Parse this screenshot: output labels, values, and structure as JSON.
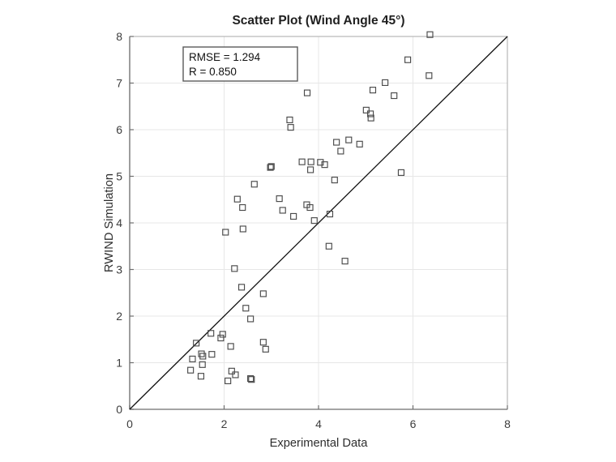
{
  "chart_data": {
    "type": "scatter",
    "title": "Scatter Plot (Wind Angle 45°)",
    "xlabel": "Experimental Data",
    "ylabel": "RWIND Simulation",
    "xlim": [
      0,
      8
    ],
    "ylim": [
      0,
      8
    ],
    "xticks": [
      0,
      2,
      4,
      6,
      8
    ],
    "yticks": [
      0,
      1,
      2,
      3,
      4,
      5,
      6,
      7,
      8
    ],
    "grid": true,
    "legend": "none",
    "marker_style": "open-square",
    "identity_line": {
      "from": [
        0,
        0
      ],
      "to": [
        8,
        8
      ]
    },
    "annotation": {
      "lines": [
        "RMSE = 1.294",
        "R = 0.850"
      ],
      "rmse": 1.294,
      "r": 0.85
    },
    "colors": {
      "marker_stroke": "#4a4a4a",
      "identity_line": "#111111",
      "grid": "#e7e7e7",
      "axis_box": "#a9a9a9",
      "axis_main": "#858585",
      "tick": "#6e6e6e",
      "annotation_border": "#5a5a5a",
      "background": "#ffffff"
    },
    "points": [
      [
        6.36,
        8.04
      ],
      [
        5.89,
        7.5
      ],
      [
        6.34,
        7.16
      ],
      [
        5.41,
        7.01
      ],
      [
        5.15,
        6.85
      ],
      [
        3.76,
        6.79
      ],
      [
        5.6,
        6.73
      ],
      [
        5.01,
        6.42
      ],
      [
        5.1,
        6.34
      ],
      [
        5.11,
        6.25
      ],
      [
        3.39,
        6.21
      ],
      [
        3.41,
        6.05
      ],
      [
        4.64,
        5.78
      ],
      [
        4.38,
        5.73
      ],
      [
        4.87,
        5.69
      ],
      [
        4.47,
        5.54
      ],
      [
        3.65,
        5.31
      ],
      [
        3.84,
        5.31
      ],
      [
        4.04,
        5.3
      ],
      [
        4.13,
        5.25
      ],
      [
        2.98,
        5.19
      ],
      [
        3.0,
        5.21
      ],
      [
        3.83,
        5.14
      ],
      [
        5.75,
        5.08
      ],
      [
        4.34,
        4.92
      ],
      [
        2.64,
        4.83
      ],
      [
        3.17,
        4.52
      ],
      [
        2.28,
        4.51
      ],
      [
        3.75,
        4.39
      ],
      [
        2.39,
        4.33
      ],
      [
        3.82,
        4.33
      ],
      [
        3.24,
        4.27
      ],
      [
        4.24,
        4.19
      ],
      [
        3.47,
        4.14
      ],
      [
        3.91,
        4.05
      ],
      [
        2.4,
        3.87
      ],
      [
        2.03,
        3.8
      ],
      [
        4.22,
        3.5
      ],
      [
        4.56,
        3.18
      ],
      [
        2.22,
        3.02
      ],
      [
        2.37,
        2.62
      ],
      [
        2.83,
        2.48
      ],
      [
        2.46,
        2.17
      ],
      [
        2.56,
        1.94
      ],
      [
        1.72,
        1.63
      ],
      [
        1.97,
        1.61
      ],
      [
        1.93,
        1.53
      ],
      [
        2.83,
        1.44
      ],
      [
        1.41,
        1.42
      ],
      [
        2.14,
        1.35
      ],
      [
        2.88,
        1.29
      ],
      [
        1.52,
        1.19
      ],
      [
        1.74,
        1.18
      ],
      [
        1.55,
        1.14
      ],
      [
        1.33,
        1.08
      ],
      [
        1.54,
        0.96
      ],
      [
        1.29,
        0.84
      ],
      [
        2.16,
        0.82
      ],
      [
        2.24,
        0.74
      ],
      [
        1.51,
        0.71
      ],
      [
        2.56,
        0.66
      ],
      [
        2.58,
        0.64
      ],
      [
        2.08,
        0.61
      ]
    ]
  }
}
